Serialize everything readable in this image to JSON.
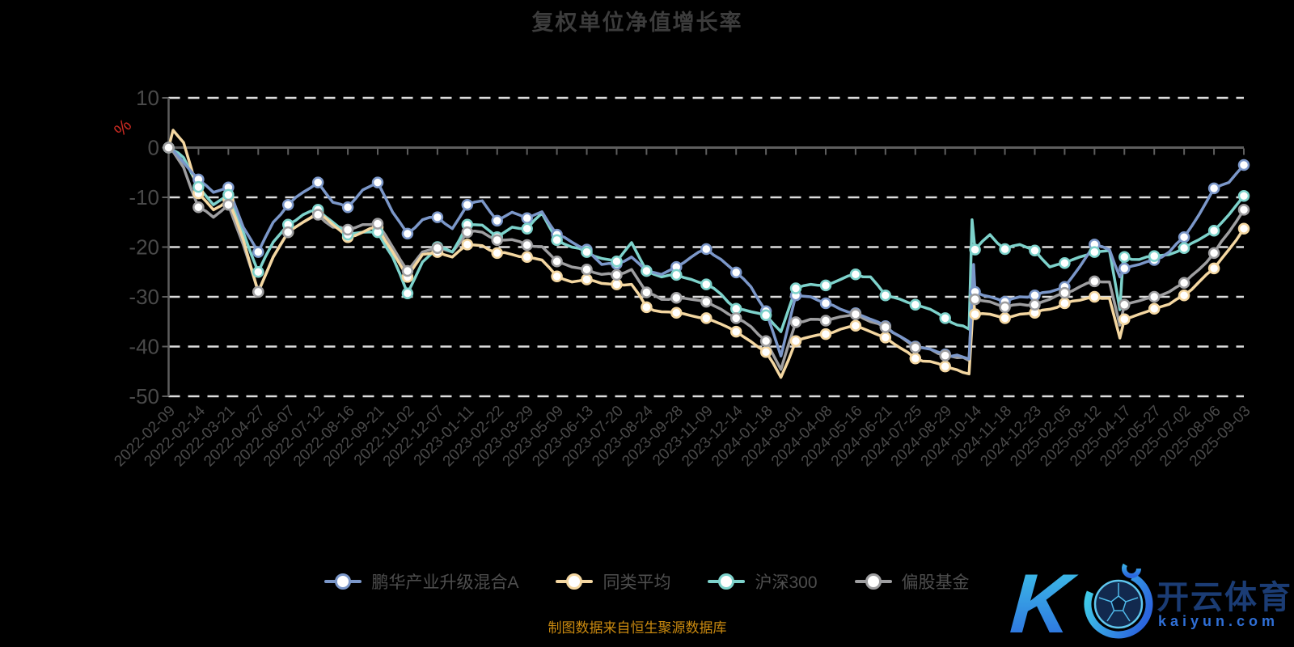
{
  "page": {
    "background": "#000000"
  },
  "watermark": {
    "letter": "K",
    "brand": "开云体育",
    "domain": "kaiyun.com",
    "brand_color": "#1b3c74",
    "domain_color": "#2f6fd6",
    "gradient_start": "#3fc8e8",
    "gradient_end": "#2b66de"
  },
  "style": {
    "grid_color": "#dcdcdc",
    "axis_color": "#5e5e5e",
    "label_color": "#4a4a4a",
    "title_color": "#3c3c3c",
    "caption_color": "#c9890f",
    "unit_color": "#cc2b22",
    "marker_fill": "#ffffff"
  },
  "chart_data": {
    "type": "line",
    "title": "复权单位净值增长率",
    "caption": "制图数据来自恒生聚源数据库",
    "ylabel": "%",
    "ylim": [
      -50,
      10
    ],
    "y_ticks": [
      10,
      0,
      -10,
      -20,
      -30,
      -40,
      -50
    ],
    "grid": "dashed-horizontal",
    "legend_position": "bottom",
    "x_labels": [
      "2022-02-09",
      "2022-02-14",
      "2022-03-21",
      "2022-04-27",
      "2022-06-07",
      "2022-07-12",
      "2022-08-16",
      "2022-09-21",
      "2022-11-02",
      "2022-12-07",
      "2023-01-11",
      "2023-02-22",
      "2023-03-29",
      "2023-05-09",
      "2023-06-13",
      "2023-07-20",
      "2023-08-24",
      "2023-09-28",
      "2023-11-09",
      "2023-12-14",
      "2024-01-18",
      "2024-03-01",
      "2024-04-08",
      "2024-05-16",
      "2024-06-21",
      "2024-07-25",
      "2024-08-29",
      "2024-10-14",
      "2024-11-18",
      "2024-12-23",
      "2025-02-05",
      "2025-03-12",
      "2025-04-17",
      "2025-05-27",
      "2025-07-02",
      "2025-08-06",
      "2025-09-03"
    ],
    "series": [
      {
        "name": "鹏华产业升级混合A",
        "color": "#7b97c9",
        "points": [
          [
            0,
            0
          ],
          [
            0.15,
            -0.5
          ],
          [
            0.5,
            -3
          ],
          [
            1,
            -6.4
          ],
          [
            1.5,
            -9
          ],
          [
            2,
            -8
          ],
          [
            2.5,
            -16
          ],
          [
            3,
            -21
          ],
          [
            3.5,
            -15
          ],
          [
            4,
            -11.5
          ],
          [
            4.5,
            -9
          ],
          [
            5,
            -7
          ],
          [
            5.5,
            -11
          ],
          [
            6,
            -12
          ],
          [
            6.5,
            -8.5
          ],
          [
            7,
            -7
          ],
          [
            7.5,
            -13
          ],
          [
            8,
            -17.3
          ],
          [
            8.5,
            -14.5
          ],
          [
            9,
            -14
          ],
          [
            9.5,
            -16.3
          ],
          [
            10,
            -11.5
          ],
          [
            10.5,
            -10.7
          ],
          [
            11,
            -14.7
          ],
          [
            11.5,
            -13
          ],
          [
            12,
            -14.2
          ],
          [
            12.5,
            -12.9
          ],
          [
            13,
            -17.5
          ],
          [
            13.5,
            -19
          ],
          [
            14,
            -20.5
          ],
          [
            14.5,
            -23.5
          ],
          [
            15,
            -23.4
          ],
          [
            15.5,
            -22
          ],
          [
            16,
            -24.8
          ],
          [
            16.5,
            -25.5
          ],
          [
            17,
            -24
          ],
          [
            17.5,
            -22
          ],
          [
            18,
            -20.4
          ],
          [
            18.5,
            -22.5
          ],
          [
            19,
            -25.1
          ],
          [
            19.5,
            -28
          ],
          [
            20,
            -32.9
          ],
          [
            20.5,
            -41.9
          ],
          [
            21,
            -29.7
          ],
          [
            21.5,
            -30
          ],
          [
            22,
            -31.3
          ],
          [
            22.5,
            -32.5
          ],
          [
            23,
            -33.3
          ],
          [
            23.5,
            -34.5
          ],
          [
            24,
            -35.9
          ],
          [
            24.5,
            -38
          ],
          [
            25,
            -40
          ],
          [
            25.5,
            -40.5
          ],
          [
            26,
            -41.6
          ],
          [
            26.8,
            -42.5
          ],
          [
            26.95,
            -23.5
          ],
          [
            27,
            -29
          ],
          [
            27.5,
            -30
          ],
          [
            28,
            -31
          ],
          [
            28.5,
            -30
          ],
          [
            29,
            -29.7
          ],
          [
            29.5,
            -29
          ],
          [
            30,
            -28
          ],
          [
            30.5,
            -24
          ],
          [
            31,
            -19.5
          ],
          [
            31.5,
            -20.5
          ],
          [
            31.85,
            -26
          ],
          [
            32,
            -24.3
          ],
          [
            32.5,
            -23.5
          ],
          [
            33,
            -22.6
          ],
          [
            33.5,
            -21
          ],
          [
            34,
            -18
          ],
          [
            34.5,
            -13.5
          ],
          [
            35,
            -8.2
          ],
          [
            35.5,
            -7
          ],
          [
            36,
            -3.5
          ]
        ]
      },
      {
        "name": "同类平均",
        "color": "#f4d7a1",
        "points": [
          [
            0,
            0
          ],
          [
            0.15,
            3.5
          ],
          [
            0.5,
            1
          ],
          [
            1,
            -9.2
          ],
          [
            1.5,
            -12.5
          ],
          [
            2,
            -10.5
          ],
          [
            2.5,
            -18.5
          ],
          [
            3,
            -29
          ],
          [
            3.5,
            -22
          ],
          [
            4,
            -17
          ],
          [
            4.5,
            -15
          ],
          [
            5,
            -13
          ],
          [
            5.5,
            -15.5
          ],
          [
            6,
            -18
          ],
          [
            6.5,
            -17
          ],
          [
            7,
            -16
          ],
          [
            7.5,
            -21
          ],
          [
            8,
            -26
          ],
          [
            8.5,
            -21.5
          ],
          [
            9,
            -21
          ],
          [
            9.5,
            -22
          ],
          [
            10,
            -19.5
          ],
          [
            10.5,
            -19.7
          ],
          [
            11,
            -21.2
          ],
          [
            11.5,
            -21.5
          ],
          [
            12,
            -22
          ],
          [
            12.5,
            -22.6
          ],
          [
            13,
            -25.9
          ],
          [
            13.5,
            -27
          ],
          [
            14,
            -26.5
          ],
          [
            14.5,
            -27.3
          ],
          [
            15,
            -27.5
          ],
          [
            15.5,
            -27.5
          ],
          [
            16,
            -32.1
          ],
          [
            16.5,
            -33
          ],
          [
            17,
            -33.2
          ],
          [
            17.5,
            -33.8
          ],
          [
            18,
            -34.3
          ],
          [
            18.5,
            -35.5
          ],
          [
            19,
            -37
          ],
          [
            19.5,
            -39
          ],
          [
            20,
            -41.1
          ],
          [
            20.5,
            -46.2
          ],
          [
            21,
            -38.9
          ],
          [
            21.5,
            -38
          ],
          [
            22,
            -37.5
          ],
          [
            22.5,
            -36.5
          ],
          [
            23,
            -35.8
          ],
          [
            23.5,
            -37
          ],
          [
            24,
            -38.2
          ],
          [
            24.5,
            -40.3
          ],
          [
            25,
            -42.4
          ],
          [
            25.5,
            -43
          ],
          [
            26,
            -44
          ],
          [
            26.8,
            -45.5
          ],
          [
            26.95,
            -30.5
          ],
          [
            27,
            -33.5
          ],
          [
            27.5,
            -33.5
          ],
          [
            28,
            -34.3
          ],
          [
            28.5,
            -33.5
          ],
          [
            29,
            -33.2
          ],
          [
            29.5,
            -32.5
          ],
          [
            30,
            -31.3
          ],
          [
            30.5,
            -30.7
          ],
          [
            31,
            -30
          ],
          [
            31.5,
            -30.3
          ],
          [
            31.85,
            -38.3
          ],
          [
            32,
            -34.5
          ],
          [
            32.5,
            -33.5
          ],
          [
            33,
            -32.4
          ],
          [
            33.5,
            -31.5
          ],
          [
            34,
            -29.7
          ],
          [
            34.5,
            -27
          ],
          [
            35,
            -24.3
          ],
          [
            35.5,
            -20.5
          ],
          [
            36,
            -16.3
          ]
        ]
      },
      {
        "name": "沪深300",
        "color": "#7dd2cb",
        "points": [
          [
            0,
            0
          ],
          [
            0.15,
            -0.5
          ],
          [
            0.5,
            -2
          ],
          [
            1,
            -7.9
          ],
          [
            1.5,
            -11.5
          ],
          [
            2,
            -9.5
          ],
          [
            2.5,
            -17
          ],
          [
            3,
            -25
          ],
          [
            3.5,
            -19
          ],
          [
            4,
            -15.5
          ],
          [
            4.5,
            -13.5
          ],
          [
            5,
            -12.5
          ],
          [
            5.5,
            -15
          ],
          [
            6,
            -17.5
          ],
          [
            6.5,
            -17
          ],
          [
            7,
            -17
          ],
          [
            7.5,
            -22
          ],
          [
            8,
            -29.3
          ],
          [
            8.5,
            -23
          ],
          [
            9,
            -20
          ],
          [
            9.5,
            -21
          ],
          [
            10,
            -15.5
          ],
          [
            10.5,
            -15.6
          ],
          [
            11,
            -18
          ],
          [
            11.5,
            -16
          ],
          [
            12,
            -16.3
          ],
          [
            12.5,
            -13.2
          ],
          [
            13,
            -18.6
          ],
          [
            13.5,
            -20
          ],
          [
            14,
            -21
          ],
          [
            14.5,
            -22.3
          ],
          [
            15,
            -22.9
          ],
          [
            15.5,
            -19.1
          ],
          [
            16,
            -24.8
          ],
          [
            16.5,
            -26
          ],
          [
            17,
            -25.6
          ],
          [
            17.5,
            -26.5
          ],
          [
            18,
            -27.5
          ],
          [
            18.5,
            -29.5
          ],
          [
            19,
            -32.4
          ],
          [
            19.5,
            -33
          ],
          [
            20,
            -33.7
          ],
          [
            20.5,
            -37
          ],
          [
            21,
            -28.3
          ],
          [
            21.5,
            -27.5
          ],
          [
            22,
            -27.7
          ],
          [
            22.5,
            -26.5
          ],
          [
            23,
            -25.5
          ],
          [
            23.5,
            -26
          ],
          [
            24,
            -29.7
          ],
          [
            24.5,
            -30.5
          ],
          [
            25,
            -31.6
          ],
          [
            25.5,
            -32.5
          ],
          [
            26,
            -34.3
          ],
          [
            26.8,
            -36.5
          ],
          [
            26.9,
            -14.5
          ],
          [
            27,
            -20.5
          ],
          [
            27.5,
            -17.5
          ],
          [
            28,
            -20.4
          ],
          [
            28.5,
            -19.5
          ],
          [
            29,
            -20.7
          ],
          [
            29.5,
            -24
          ],
          [
            30,
            -23.2
          ],
          [
            30.5,
            -22
          ],
          [
            31,
            -21
          ],
          [
            31.5,
            -20.7
          ],
          [
            31.85,
            -32.6
          ],
          [
            31.95,
            -23
          ],
          [
            32,
            -22
          ],
          [
            32.5,
            -22.5
          ],
          [
            33,
            -21.8
          ],
          [
            33.5,
            -21.5
          ],
          [
            34,
            -20.2
          ],
          [
            34.5,
            -18.5
          ],
          [
            35,
            -16.7
          ],
          [
            35.5,
            -13.5
          ],
          [
            36,
            -9.7
          ]
        ]
      },
      {
        "name": "偏股基金",
        "color": "#9e9ea0",
        "points": [
          [
            0,
            0
          ],
          [
            0.15,
            -0.8
          ],
          [
            0.5,
            -4
          ],
          [
            1,
            -12
          ],
          [
            1.5,
            -14
          ],
          [
            2,
            -11.5
          ],
          [
            2.5,
            -19.5
          ],
          [
            3,
            -29
          ],
          [
            3.5,
            -22
          ],
          [
            4,
            -17
          ],
          [
            4.5,
            -15
          ],
          [
            5,
            -13.5
          ],
          [
            5.5,
            -16
          ],
          [
            6,
            -16.5
          ],
          [
            6.5,
            -15.5
          ],
          [
            7,
            -15.3
          ],
          [
            7.5,
            -20
          ],
          [
            8,
            -24.8
          ],
          [
            8.5,
            -21
          ],
          [
            9,
            -20.2
          ],
          [
            9.5,
            -21
          ],
          [
            10,
            -17
          ],
          [
            10.5,
            -17
          ],
          [
            11,
            -18.6
          ],
          [
            11.5,
            -18.5
          ],
          [
            12,
            -19.6
          ],
          [
            12.5,
            -19.9
          ],
          [
            13,
            -22.9
          ],
          [
            13.5,
            -24
          ],
          [
            14,
            -24.5
          ],
          [
            14.5,
            -25.5
          ],
          [
            15,
            -25.6
          ],
          [
            15.5,
            -24.5
          ],
          [
            16,
            -29.1
          ],
          [
            16.5,
            -30.5
          ],
          [
            17,
            -30.2
          ],
          [
            17.5,
            -30.5
          ],
          [
            18,
            -31
          ],
          [
            18.5,
            -32.5
          ],
          [
            19,
            -34.3
          ],
          [
            19.5,
            -36
          ],
          [
            20,
            -38.9
          ],
          [
            20.5,
            -44.6
          ],
          [
            21,
            -35.1
          ],
          [
            21.5,
            -34.5
          ],
          [
            22,
            -34.8
          ],
          [
            22.5,
            -34
          ],
          [
            23,
            -33.5
          ],
          [
            23.5,
            -35
          ],
          [
            24,
            -36.1
          ],
          [
            24.5,
            -38
          ],
          [
            25,
            -40.2
          ],
          [
            25.5,
            -40.5
          ],
          [
            26,
            -41.8
          ],
          [
            26.8,
            -42.8
          ],
          [
            26.95,
            -24.5
          ],
          [
            27,
            -30.5
          ],
          [
            27.5,
            -31
          ],
          [
            28,
            -32.1
          ],
          [
            28.5,
            -31.5
          ],
          [
            29,
            -31.6
          ],
          [
            29.5,
            -30.5
          ],
          [
            30,
            -29.2
          ],
          [
            30.5,
            -28
          ],
          [
            31,
            -26.9
          ],
          [
            31.5,
            -27
          ],
          [
            31.85,
            -35.7
          ],
          [
            32,
            -31.6
          ],
          [
            32.5,
            -30.8
          ],
          [
            33,
            -30
          ],
          [
            33.5,
            -29
          ],
          [
            34,
            -27.2
          ],
          [
            34.5,
            -24.5
          ],
          [
            35,
            -21.2
          ],
          [
            35.5,
            -17
          ],
          [
            36,
            -12.5
          ]
        ]
      }
    ]
  }
}
